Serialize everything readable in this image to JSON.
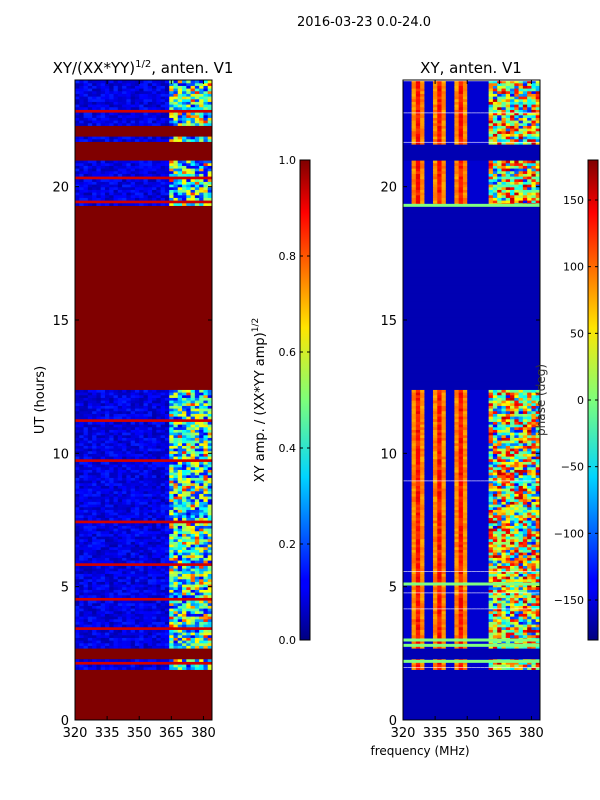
{
  "suptitle": "2016-03-23 0.0-24.0",
  "chart_data": [
    {
      "type": "heatmap",
      "title": "XY/(XX*YY)",
      "title_sup": "1/2",
      "title_suffix": ", anten. V1",
      "xlabel": "",
      "ylabel": "UT (hours)",
      "xlim": [
        320,
        384
      ],
      "ylim": [
        0,
        24
      ],
      "xticks": [
        320,
        335,
        350,
        365,
        380
      ],
      "yticks": [
        0,
        5,
        10,
        15,
        20
      ],
      "colorbar": {
        "label": "XY amp. / (XX*YY amp)",
        "label_sup": "1/2",
        "range": [
          0.0,
          1.0
        ],
        "ticks": [
          "0.0",
          "0.2",
          "0.4",
          "0.6",
          "0.8",
          "1.0"
        ],
        "tick_values": [
          0.0,
          0.2,
          0.4,
          0.6,
          0.8,
          1.0
        ],
        "colormap": "jet"
      },
      "saturated_bands_hours": [
        [
          0.0,
          1.9
        ],
        [
          2.3,
          2.7
        ],
        [
          12.4,
          19.3
        ],
        [
          21.0,
          21.7
        ],
        [
          21.9,
          22.3
        ]
      ],
      "active_freq_range_mhz": [
        364,
        383
      ]
    },
    {
      "type": "heatmap",
      "title": "XY, anten. V1",
      "xlabel": "frequency (MHz)",
      "ylabel": "",
      "xlim": [
        320,
        384
      ],
      "ylim": [
        0,
        24
      ],
      "xticks": [
        320,
        335,
        350,
        365,
        380
      ],
      "yticks": [
        0,
        5,
        10,
        15,
        20
      ],
      "colorbar": {
        "label": "phase (deg)",
        "range": [
          -180,
          180
        ],
        "ticks": [
          "150",
          "100",
          "50",
          "0",
          "−50",
          "−100",
          "−150"
        ],
        "tick_values": [
          150,
          100,
          50,
          0,
          -50,
          -100,
          -150
        ],
        "colormap": "jet"
      },
      "flat_bands_hours": [
        [
          0.0,
          1.9
        ],
        [
          2.3,
          2.7
        ],
        [
          12.4,
          19.3
        ],
        [
          21.0,
          21.6
        ]
      ],
      "green_lines_hours": [
        2.2,
        2.8,
        3.0,
        5.1,
        19.3
      ],
      "phase_stripe_centers_mhz": [
        327,
        337,
        347
      ],
      "active_freq_range_mhz": [
        361,
        384
      ]
    }
  ]
}
